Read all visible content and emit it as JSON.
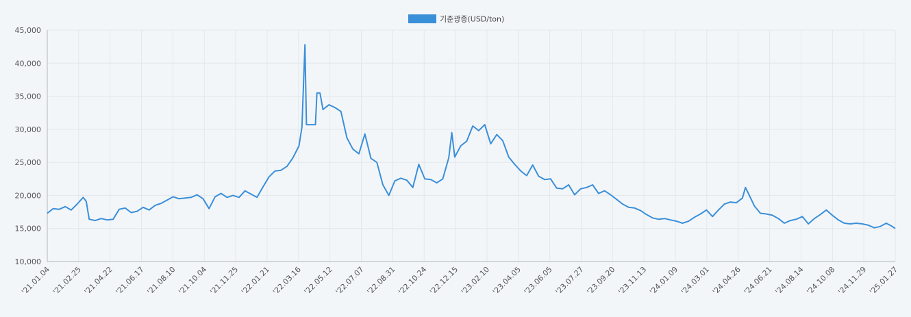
{
  "chart_data": {
    "type": "line",
    "title": "",
    "xlabel": "",
    "ylabel": "",
    "ylim": [
      10000,
      45000
    ],
    "grid": true,
    "legend": "top-center",
    "colors": {
      "line": "#3a8fd9",
      "grid": "#e2e7ec",
      "axis": "#b5b5b5"
    },
    "y_ticks": [
      "10,000",
      "15,000",
      "20,000",
      "25,000",
      "30,000",
      "35,000",
      "40,000",
      "45,000"
    ],
    "y_tick_values": [
      10000,
      15000,
      20000,
      25000,
      30000,
      35000,
      40000,
      45000
    ],
    "x_tick_labels": [
      "'21.01.04",
      "'21.02.25",
      "'21.04.22",
      "'21.06.17",
      "'21.08.10",
      "'21.10.04",
      "'21.11.25",
      "'22.01.21",
      "'22.03.16",
      "'22.05.12",
      "'22.07.07",
      "'22.08.31",
      "'22.10.24",
      "'22.12.15",
      "'23.02.10",
      "'23.04.05",
      "'23.06.05",
      "'23.07.27",
      "'23.09.20",
      "'23.11.13",
      "'24.01.09",
      "'24.03.01",
      "'24.04.26",
      "'24.06.21",
      "'24.08.14",
      "'24.10.08",
      "'24.11.29",
      "'25.01.27"
    ],
    "series": [
      {
        "name": "기준광종(USD/ton)",
        "points": [
          [
            0,
            17300
          ],
          [
            2,
            18000
          ],
          [
            4,
            17900
          ],
          [
            6,
            18300
          ],
          [
            8,
            17800
          ],
          [
            10,
            18700
          ],
          [
            12,
            19700
          ],
          [
            13,
            19100
          ],
          [
            14,
            16400
          ],
          [
            16,
            16200
          ],
          [
            18,
            16500
          ],
          [
            20,
            16300
          ],
          [
            22,
            16400
          ],
          [
            24,
            17900
          ],
          [
            26,
            18100
          ],
          [
            28,
            17400
          ],
          [
            30,
            17600
          ],
          [
            32,
            18200
          ],
          [
            34,
            17800
          ],
          [
            36,
            18500
          ],
          [
            38,
            18800
          ],
          [
            40,
            19300
          ],
          [
            42,
            19800
          ],
          [
            44,
            19500
          ],
          [
            46,
            19600
          ],
          [
            48,
            19700
          ],
          [
            50,
            20100
          ],
          [
            52,
            19500
          ],
          [
            54,
            18000
          ],
          [
            56,
            19800
          ],
          [
            58,
            20300
          ],
          [
            60,
            19700
          ],
          [
            62,
            20000
          ],
          [
            64,
            19700
          ],
          [
            66,
            20700
          ],
          [
            68,
            20200
          ],
          [
            70,
            19700
          ],
          [
            72,
            21300
          ],
          [
            74,
            22800
          ],
          [
            76,
            23700
          ],
          [
            78,
            23800
          ],
          [
            80,
            24400
          ],
          [
            82,
            25700
          ],
          [
            84,
            27500
          ],
          [
            85,
            30300
          ],
          [
            86,
            42800
          ],
          [
            86.5,
            30700
          ],
          [
            88,
            30700
          ],
          [
            89.5,
            30700
          ],
          [
            90,
            35500
          ],
          [
            91,
            35500
          ],
          [
            92,
            33000
          ],
          [
            94,
            33700
          ],
          [
            96,
            33300
          ],
          [
            98,
            32700
          ],
          [
            100,
            28700
          ],
          [
            102,
            27000
          ],
          [
            104,
            26300
          ],
          [
            106,
            29300
          ],
          [
            108,
            25600
          ],
          [
            110,
            25000
          ],
          [
            112,
            21600
          ],
          [
            114,
            20000
          ],
          [
            116,
            22200
          ],
          [
            118,
            22600
          ],
          [
            120,
            22300
          ],
          [
            122,
            21200
          ],
          [
            124,
            24700
          ],
          [
            126,
            22500
          ],
          [
            128,
            22400
          ],
          [
            130,
            21900
          ],
          [
            132,
            22500
          ],
          [
            134,
            25700
          ],
          [
            135,
            29500
          ],
          [
            136,
            25800
          ],
          [
            138,
            27500
          ],
          [
            140,
            28200
          ],
          [
            142,
            30500
          ],
          [
            144,
            29800
          ],
          [
            146,
            30700
          ],
          [
            148,
            27800
          ],
          [
            150,
            29200
          ],
          [
            152,
            28300
          ],
          [
            154,
            25800
          ],
          [
            156,
            24700
          ],
          [
            158,
            23700
          ],
          [
            160,
            23000
          ],
          [
            162,
            24600
          ],
          [
            164,
            22900
          ],
          [
            166,
            22400
          ],
          [
            168,
            22500
          ],
          [
            170,
            21100
          ],
          [
            172,
            21000
          ],
          [
            174,
            21600
          ],
          [
            176,
            20100
          ],
          [
            178,
            21000
          ],
          [
            180,
            21200
          ],
          [
            182,
            21600
          ],
          [
            184,
            20300
          ],
          [
            186,
            20700
          ],
          [
            188,
            20100
          ],
          [
            190,
            19400
          ],
          [
            192,
            18700
          ],
          [
            194,
            18200
          ],
          [
            196,
            18100
          ],
          [
            198,
            17700
          ],
          [
            200,
            17100
          ],
          [
            202,
            16600
          ],
          [
            204,
            16400
          ],
          [
            206,
            16500
          ],
          [
            208,
            16300
          ],
          [
            210,
            16100
          ],
          [
            212,
            15800
          ],
          [
            214,
            16100
          ],
          [
            216,
            16700
          ],
          [
            218,
            17200
          ],
          [
            220,
            17800
          ],
          [
            222,
            16800
          ],
          [
            224,
            17800
          ],
          [
            226,
            18700
          ],
          [
            228,
            19000
          ],
          [
            230,
            18900
          ],
          [
            232,
            19600
          ],
          [
            233,
            21200
          ],
          [
            234,
            20300
          ],
          [
            236,
            18400
          ],
          [
            238,
            17300
          ],
          [
            240,
            17200
          ],
          [
            242,
            17000
          ],
          [
            244,
            16500
          ],
          [
            246,
            15800
          ],
          [
            248,
            16200
          ],
          [
            250,
            16400
          ],
          [
            252,
            16800
          ],
          [
            254,
            15700
          ],
          [
            256,
            16500
          ],
          [
            258,
            17100
          ],
          [
            260,
            17800
          ],
          [
            262,
            17000
          ],
          [
            264,
            16300
          ],
          [
            266,
            15800
          ],
          [
            268,
            15700
          ],
          [
            270,
            15800
          ],
          [
            272,
            15700
          ],
          [
            274,
            15500
          ],
          [
            276,
            15100
          ],
          [
            278,
            15300
          ],
          [
            280,
            15800
          ],
          [
            282,
            15300
          ],
          [
            283,
            15000
          ]
        ]
      }
    ]
  }
}
